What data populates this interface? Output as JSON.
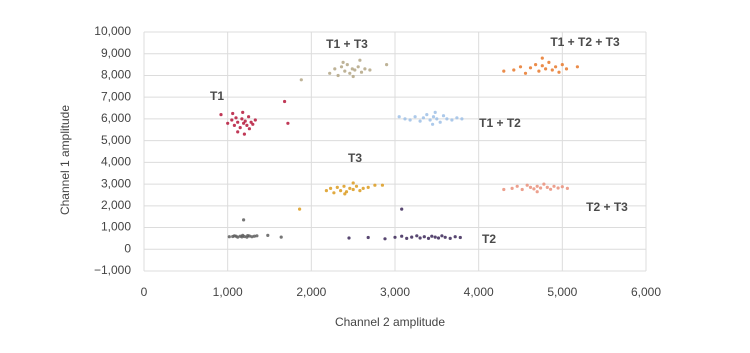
{
  "chart_data": {
    "type": "scatter",
    "x_label": "Channel 2 amplitude",
    "y_label": "Channel 1 amplitude",
    "xlim": [
      0,
      6000
    ],
    "xticks": [
      0,
      {
        "value": 1000,
        "label": "1,000"
      },
      {
        "value": 2000,
        "label": "2,000"
      },
      {
        "value": 3000,
        "label": "3,000"
      },
      {
        "value": 4000,
        "label": "4,000"
      },
      {
        "value": 5000,
        "label": "5,000"
      },
      {
        "value": 6000,
        "label": "6,000"
      }
    ],
    "ylim": [
      -1000,
      10000
    ],
    "yticks": [
      {
        "value": -1000,
        "label": "−1,000"
      },
      0,
      {
        "value": 1000,
        "label": "1,000"
      },
      {
        "value": 2000,
        "label": "2,000"
      },
      {
        "value": 3000,
        "label": "3,000"
      },
      {
        "value": 4000,
        "label": "4,000"
      },
      {
        "value": 5000,
        "label": "5,000"
      },
      {
        "value": 6000,
        "label": "6,000"
      },
      {
        "value": 7000,
        "label": "7,000"
      },
      {
        "value": 8000,
        "label": "8,000"
      },
      {
        "value": 9000,
        "label": "9,000"
      },
      {
        "value": 10000,
        "label": "10,000"
      }
    ],
    "grid": true,
    "series": [
      {
        "color": "#5e5e5e",
        "x": [
          1020,
          1080,
          1120,
          1150,
          1180,
          1200,
          1230,
          1260,
          1290,
          1320,
          1100,
          1170,
          1240,
          1060,
          1350,
          1190,
          1480,
          1640
        ],
        "values": [
          580,
          620,
          560,
          600,
          640,
          590,
          560,
          610,
          580,
          600,
          600,
          570,
          630,
          590,
          620,
          1350,
          640,
          560
        ]
      },
      {
        "name": "T1",
        "color": "#b5163a",
        "x": [
          1000,
          1050,
          1080,
          1100,
          1120,
          1150,
          1170,
          1190,
          1210,
          1230,
          1250,
          1280,
          1300,
          1330,
          1120,
          1200,
          1180,
          1260,
          920,
          1680,
          1720,
          1060
        ],
        "values": [
          5800,
          5950,
          5700,
          6050,
          5850,
          5600,
          6000,
          5800,
          5900,
          5700,
          6100,
          5850,
          5750,
          5950,
          5400,
          5300,
          6300,
          5550,
          6200,
          6800,
          5800,
          6250
        ]
      },
      {
        "name": "T1 + T3",
        "color": "#b3a685",
        "x": [
          2220,
          2280,
          2320,
          2360,
          2400,
          2430,
          2460,
          2490,
          2520,
          2560,
          2600,
          2640,
          2700,
          2380,
          2500,
          2900,
          1880,
          2580
        ],
        "values": [
          8100,
          8300,
          8000,
          8400,
          8200,
          8500,
          8100,
          8300,
          8250,
          8400,
          8150,
          8300,
          8250,
          8600,
          7950,
          8500,
          7800,
          8700
        ]
      },
      {
        "name": "T3",
        "color": "#dc9b1e",
        "x": [
          2180,
          2230,
          2270,
          2310,
          2350,
          2390,
          2420,
          2460,
          2500,
          2540,
          2580,
          2620,
          2680,
          2760,
          2850,
          2400,
          2500,
          1860
        ],
        "values": [
          2700,
          2800,
          2600,
          2850,
          2700,
          2900,
          2650,
          2800,
          2750,
          2900,
          2700,
          2800,
          2850,
          2950,
          2950,
          2550,
          3050,
          1850
        ]
      },
      {
        "name": "T1 + T2",
        "color": "#9dbfe6",
        "x": [
          3120,
          3180,
          3240,
          3300,
          3340,
          3380,
          3420,
          3460,
          3500,
          3540,
          3580,
          3620,
          3680,
          3740,
          3800,
          3450,
          3480,
          3050
        ],
        "values": [
          6000,
          5950,
          6100,
          5900,
          6050,
          6200,
          5950,
          6100,
          6000,
          5850,
          6150,
          6000,
          5950,
          6050,
          6000,
          5750,
          6300,
          6100
        ]
      },
      {
        "name": "T2",
        "color": "#3b2758",
        "x": [
          3000,
          3080,
          3140,
          3200,
          3260,
          3300,
          3350,
          3400,
          3440,
          3480,
          3520,
          3560,
          3600,
          3660,
          3720,
          3780,
          2450,
          2680,
          2880,
          3080
        ],
        "values": [
          550,
          600,
          500,
          560,
          620,
          520,
          580,
          500,
          600,
          560,
          520,
          620,
          550,
          500,
          580,
          540,
          520,
          540,
          480,
          1850
        ]
      },
      {
        "name": "T2 + T3",
        "color": "#e98f7a",
        "x": [
          4400,
          4460,
          4520,
          4580,
          4620,
          4660,
          4700,
          4740,
          4780,
          4820,
          4860,
          4900,
          4950,
          5000,
          5060,
          4300,
          4700
        ],
        "values": [
          2800,
          2900,
          2750,
          2950,
          2850,
          2780,
          2900,
          2820,
          3000,
          2850,
          2760,
          2900,
          2820,
          2880,
          2800,
          2750,
          2650
        ]
      },
      {
        "name": "T1 + T2 + T3",
        "color": "#e8782a",
        "x": [
          4420,
          4500,
          4560,
          4620,
          4680,
          4720,
          4760,
          4800,
          4840,
          4880,
          4920,
          4960,
          5000,
          5050,
          4300,
          4760,
          5180
        ],
        "values": [
          8250,
          8400,
          8100,
          8350,
          8500,
          8200,
          8450,
          8300,
          8600,
          8250,
          8400,
          8150,
          8500,
          8300,
          8200,
          8800,
          8400
        ]
      }
    ]
  }
}
